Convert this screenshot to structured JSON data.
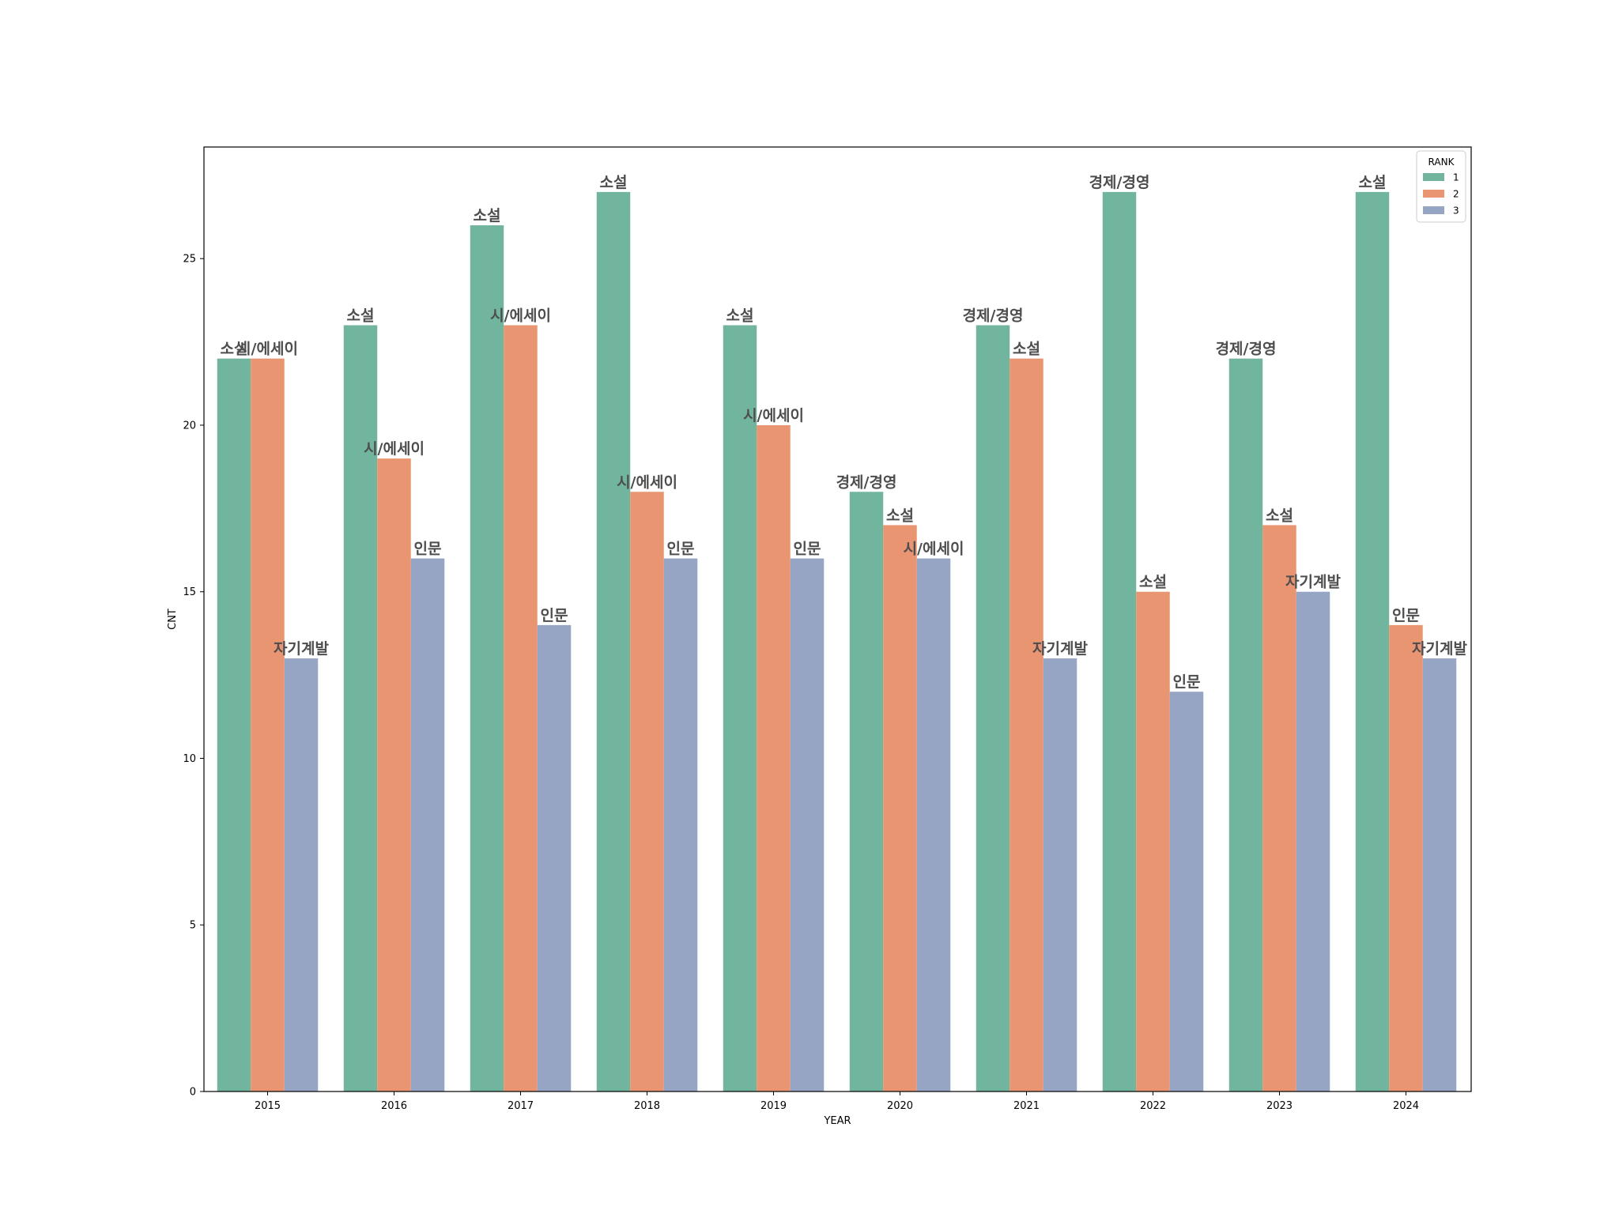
{
  "chart_data": {
    "type": "bar",
    "xlabel": "YEAR",
    "ylabel": "CNT",
    "ylim": [
      0,
      28.35
    ],
    "yticks": [
      0,
      5,
      10,
      15,
      20,
      25
    ],
    "categories": [
      "2015",
      "2016",
      "2017",
      "2018",
      "2019",
      "2020",
      "2021",
      "2022",
      "2023",
      "2024"
    ],
    "legend": {
      "title": "RANK",
      "placement": "top-right"
    },
    "grid": false,
    "series": [
      {
        "name": "1",
        "color": "#72b59e",
        "values": [
          22,
          23,
          26,
          27,
          23,
          18,
          23,
          27,
          22,
          27
        ],
        "labels": [
          "소설",
          "소설",
          "소설",
          "소설",
          "소설",
          "경제/경영",
          "경제/경영",
          "경제/경영",
          "경제/경영",
          "소설"
        ]
      },
      {
        "name": "2",
        "color": "#e99572",
        "values": [
          22,
          19,
          23,
          18,
          20,
          17,
          22,
          15,
          17,
          14
        ],
        "labels": [
          "시/에세이",
          "시/에세이",
          "시/에세이",
          "시/에세이",
          "시/에세이",
          "소설",
          "소설",
          "소설",
          "소설",
          "인문"
        ]
      },
      {
        "name": "3",
        "color": "#97a5c4",
        "values": [
          13,
          16,
          14,
          16,
          16,
          16,
          13,
          12,
          15,
          13
        ],
        "labels": [
          "자기계발",
          "인문",
          "인문",
          "인문",
          "인문",
          "시/에세이",
          "자기계발",
          "인문",
          "자기계발",
          "자기계발"
        ]
      }
    ]
  }
}
